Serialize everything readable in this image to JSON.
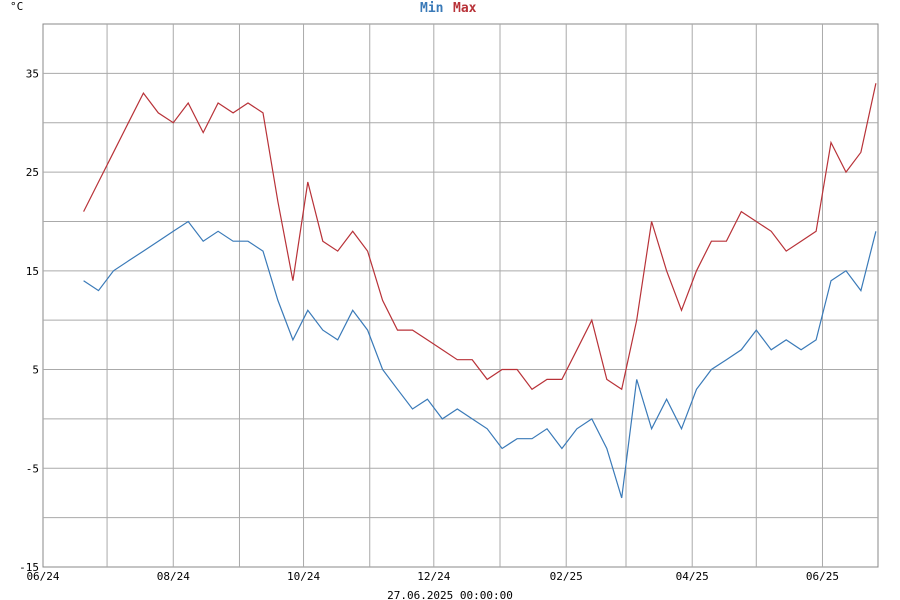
{
  "chart_data": {
    "type": "line",
    "title": "",
    "unit_label": "°C",
    "ylim": [
      -15,
      40
    ],
    "yticks": [
      -15,
      -5,
      5,
      15,
      25,
      35
    ],
    "x_tick_labels": [
      "06/24",
      "08/24",
      "10/24",
      "12/24",
      "02/25",
      "04/25",
      "06/25"
    ],
    "x_range_label": "27.06.2025 00:00:00",
    "grid": true,
    "legend": "top-center",
    "series": [
      {
        "name": "Min",
        "color": "#3a7ab8",
        "x": [
          "2024-06-20",
          "2024-06-27",
          "2024-07-04",
          "2024-07-11",
          "2024-07-18",
          "2024-07-25",
          "2024-08-01",
          "2024-08-08",
          "2024-08-15",
          "2024-08-22",
          "2024-08-29",
          "2024-09-05",
          "2024-09-12",
          "2024-09-19",
          "2024-09-26",
          "2024-10-03",
          "2024-10-10",
          "2024-10-17",
          "2024-10-24",
          "2024-10-31",
          "2024-11-07",
          "2024-11-14",
          "2024-11-21",
          "2024-11-28",
          "2024-12-05",
          "2024-12-12",
          "2024-12-19",
          "2024-12-26",
          "2025-01-02",
          "2025-01-09",
          "2025-01-16",
          "2025-01-23",
          "2025-01-30",
          "2025-02-06",
          "2025-02-13",
          "2025-02-20",
          "2025-02-27",
          "2025-03-06",
          "2025-03-13",
          "2025-03-20",
          "2025-03-27",
          "2025-04-03",
          "2025-04-10",
          "2025-04-17",
          "2025-04-24",
          "2025-05-01",
          "2025-05-08",
          "2025-05-15",
          "2025-05-22",
          "2025-05-29",
          "2025-06-05",
          "2025-06-12",
          "2025-06-19",
          "2025-06-26"
        ],
        "values": [
          14,
          13,
          15,
          16,
          17,
          18,
          19,
          20,
          18,
          19,
          18,
          18,
          17,
          12,
          8,
          11,
          9,
          8,
          11,
          9,
          5,
          3,
          1,
          2,
          0,
          1,
          0,
          -1,
          -3,
          -2,
          -2,
          -1,
          -3,
          -1,
          0,
          -3,
          -8,
          4,
          -1,
          2,
          -1,
          3,
          5,
          6,
          7,
          9,
          7,
          8,
          7,
          8,
          14,
          15,
          13,
          19
        ]
      },
      {
        "name": "Max",
        "color": "#b83238",
        "x": [
          "2024-06-20",
          "2024-06-27",
          "2024-07-04",
          "2024-07-11",
          "2024-07-18",
          "2024-07-25",
          "2024-08-01",
          "2024-08-08",
          "2024-08-15",
          "2024-08-22",
          "2024-08-29",
          "2024-09-05",
          "2024-09-12",
          "2024-09-19",
          "2024-09-26",
          "2024-10-03",
          "2024-10-10",
          "2024-10-17",
          "2024-10-24",
          "2024-10-31",
          "2024-11-07",
          "2024-11-14",
          "2024-11-21",
          "2024-11-28",
          "2024-12-05",
          "2024-12-12",
          "2024-12-19",
          "2024-12-26",
          "2025-01-02",
          "2025-01-09",
          "2025-01-16",
          "2025-01-23",
          "2025-01-30",
          "2025-02-06",
          "2025-02-13",
          "2025-02-20",
          "2025-02-27",
          "2025-03-06",
          "2025-03-13",
          "2025-03-20",
          "2025-03-27",
          "2025-04-03",
          "2025-04-10",
          "2025-04-17",
          "2025-04-24",
          "2025-05-01",
          "2025-05-08",
          "2025-05-15",
          "2025-05-22",
          "2025-05-29",
          "2025-06-05",
          "2025-06-12",
          "2025-06-19",
          "2025-06-26"
        ],
        "values": [
          21,
          24,
          27,
          30,
          33,
          31,
          30,
          32,
          29,
          32,
          31,
          32,
          31,
          22,
          14,
          24,
          18,
          17,
          19,
          17,
          12,
          9,
          9,
          8,
          7,
          6,
          6,
          4,
          5,
          5,
          3,
          4,
          4,
          7,
          10,
          4,
          3,
          10,
          20,
          15,
          11,
          15,
          18,
          18,
          21,
          20,
          19,
          17,
          18,
          19,
          28,
          25,
          27,
          34
        ]
      }
    ]
  }
}
